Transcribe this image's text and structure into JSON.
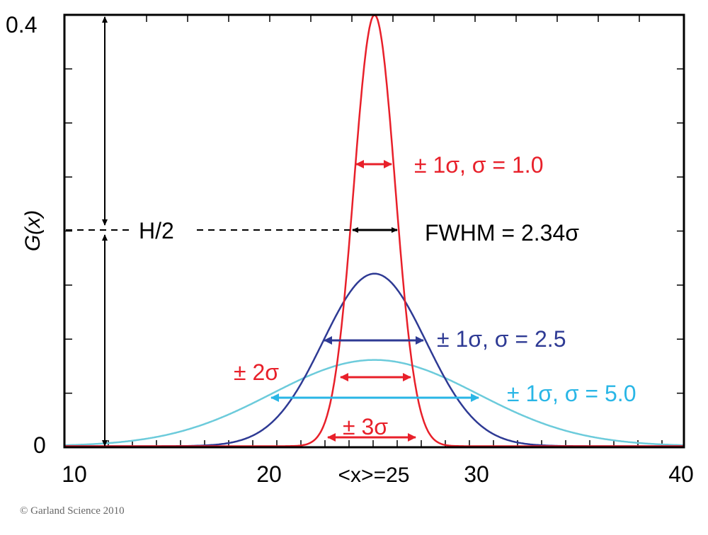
{
  "chart_data": {
    "type": "line",
    "title": "",
    "xlabel": "",
    "ylabel": "G(x)",
    "xlim": [
      10,
      40
    ],
    "ylim": [
      0,
      0.4
    ],
    "x_tick_labels": [
      "10",
      "20",
      "<x>=25",
      "30",
      "40"
    ],
    "x_tick_values": [
      10,
      20,
      25,
      30,
      40
    ],
    "y_tick_labels": [
      "0",
      "0.4"
    ],
    "y_tick_values": [
      0,
      0.4
    ],
    "grid": false,
    "series": [
      {
        "function": "gaussian",
        "mean": 25,
        "sigma": 1.0,
        "color": "#e8202a"
      },
      {
        "function": "gaussian",
        "mean": 25,
        "sigma": 2.5,
        "color": "#2e3a94"
      },
      {
        "function": "gaussian",
        "mean": 25,
        "sigma": 5.0,
        "color": "#6ccbdb"
      }
    ],
    "annotations": {
      "half_max": "H/2",
      "fwhm": "FWHM = 2.34σ",
      "red_1sigma": "± 1σ, σ = 1.0",
      "blue_1sigma": "± 1σ, σ = 2.5",
      "cyan_1sigma": "± 1σ, σ = 5.0",
      "red_2sigma": "± 2σ",
      "red_3sigma": "± 3σ"
    },
    "annotation_colors": {
      "red": "#e8202a",
      "blue": "#2e3a94",
      "cyan": "#29b6e6",
      "black": "#000000"
    }
  },
  "copyright": "© Garland Science 2010"
}
